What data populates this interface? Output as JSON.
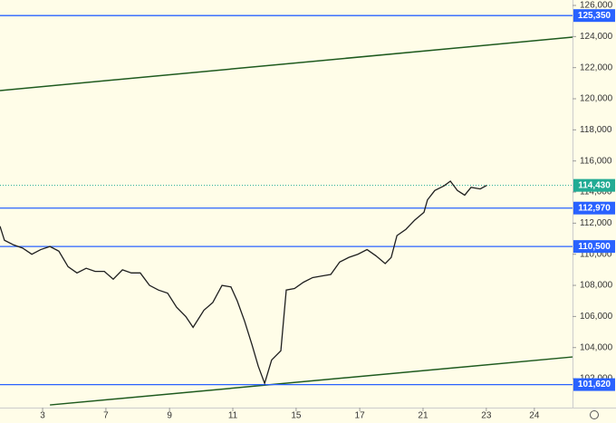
{
  "chart_data": {
    "type": "line",
    "x": [
      0,
      1.4,
      4.3,
      7.1,
      10,
      12.8,
      15.7,
      18.5,
      21.4,
      24.2,
      27.1,
      29.9,
      32.8,
      35.6,
      38.5,
      41.3,
      44.1,
      47,
      49.8,
      52.7,
      55.5,
      58.4,
      60.7,
      64.1,
      66.9,
      69.8,
      72.6,
      74.6,
      76.9,
      79.2,
      81.2,
      83.2,
      85.4,
      88.3,
      90,
      92.6,
      95.4,
      98.3,
      101.1,
      104,
      106.8,
      109.7,
      112.5,
      115.4,
      118.2,
      121.1,
      123,
      124.8,
      127.6,
      130.4,
      133.3,
      134.4,
      136.7,
      139.6,
      141.6,
      143.8,
      146.1,
      148.1,
      151,
      153
    ],
    "series": [
      {
        "color": "#1f1f1f",
        "values": [
          111800,
          110900,
          110600,
          110400,
          110000,
          110300,
          110500,
          110200,
          109200,
          108800,
          109100,
          108900,
          108900,
          108400,
          109000,
          108800,
          108800,
          108000,
          107700,
          107500,
          106600,
          106000,
          105300,
          106400,
          106900,
          108000,
          107900,
          107000,
          105700,
          104200,
          102800,
          101700,
          103200,
          103800,
          107700,
          107800,
          108200,
          108500,
          108600,
          108700,
          109500,
          109800,
          110000,
          110300,
          109900,
          109400,
          109800,
          111200,
          111600,
          112200,
          112700,
          113500,
          114100,
          114400,
          114700,
          114100,
          113800,
          114300,
          114200,
          114430
        ]
      }
    ],
    "xlim": [
      0,
      180
    ],
    "xticks": [
      {
        "value": 13.4,
        "label": "3"
      },
      {
        "value": 33.3,
        "label": "7"
      },
      {
        "value": 53.3,
        "label": "9"
      },
      {
        "value": 73.2,
        "label": "11"
      },
      {
        "value": 93.1,
        "label": "15"
      },
      {
        "value": 113.1,
        "label": "17"
      },
      {
        "value": 133,
        "label": "21"
      },
      {
        "value": 152.9,
        "label": "23"
      },
      {
        "value": 168,
        "label": "24"
      }
    ],
    "ylim": [
      100140,
      126350
    ],
    "yticks": [
      {
        "value": 102000,
        "label": "102,000"
      },
      {
        "value": 104000,
        "label": "104,000"
      },
      {
        "value": 106000,
        "label": "106,000"
      },
      {
        "value": 108000,
        "label": "108,000"
      },
      {
        "value": 110000,
        "label": "110,000"
      },
      {
        "value": 112000,
        "label": "112,000"
      },
      {
        "value": 114000,
        "label": "114,000"
      },
      {
        "value": 116000,
        "label": "116,000"
      },
      {
        "value": 118000,
        "label": "118,000"
      },
      {
        "value": 120000,
        "label": "120,000"
      },
      {
        "value": 122000,
        "label": "122,000"
      },
      {
        "value": 124000,
        "label": "124,000"
      },
      {
        "value": 126000,
        "label": "126,000"
      }
    ],
    "hlines": [
      {
        "value": 125350,
        "label": "125,350",
        "color": "#2962ff"
      },
      {
        "value": 112970,
        "label": "112,970",
        "color": "#2962ff"
      },
      {
        "value": 110500,
        "label": "110,500",
        "color": "#2962ff"
      },
      {
        "value": 101620,
        "label": "101,620",
        "color": "#2962ff"
      }
    ],
    "last_price": {
      "value": 114430,
      "label": "114,430",
      "color": "#22ab94"
    },
    "trendlines": [
      {
        "x": [
          0,
          180
        ],
        "y": [
          120525,
          123962
        ],
        "color": "#1e5a1e"
      },
      {
        "x": [
          15.7,
          180
        ],
        "y": [
          100311,
          103398
        ],
        "color": "#1e5a1e"
      }
    ]
  }
}
